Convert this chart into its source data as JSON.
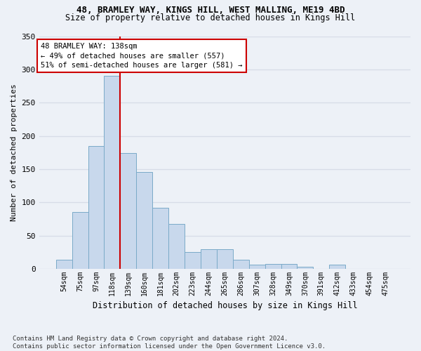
{
  "title1": "48, BRAMLEY WAY, KINGS HILL, WEST MALLING, ME19 4BD",
  "title2": "Size of property relative to detached houses in Kings Hill",
  "xlabel": "Distribution of detached houses by size in Kings Hill",
  "ylabel": "Number of detached properties",
  "footnote": "Contains HM Land Registry data © Crown copyright and database right 2024.\nContains public sector information licensed under the Open Government Licence v3.0.",
  "bar_labels": [
    "54sqm",
    "75sqm",
    "97sqm",
    "118sqm",
    "139sqm",
    "160sqm",
    "181sqm",
    "202sqm",
    "223sqm",
    "244sqm",
    "265sqm",
    "286sqm",
    "307sqm",
    "328sqm",
    "349sqm",
    "370sqm",
    "391sqm",
    "412sqm",
    "433sqm",
    "454sqm",
    "475sqm"
  ],
  "bar_values": [
    14,
    86,
    185,
    290,
    174,
    146,
    92,
    68,
    26,
    30,
    30,
    14,
    6,
    8,
    8,
    3,
    0,
    6,
    0,
    0,
    0
  ],
  "bar_color": "#c8d8ec",
  "bar_edge_color": "#7aaac8",
  "vline_color": "#cc0000",
  "vline_pos": 3.5,
  "annotation_text": "48 BRAMLEY WAY: 138sqm\n← 49% of detached houses are smaller (557)\n51% of semi-detached houses are larger (581) →",
  "annotation_box_facecolor": "white",
  "annotation_box_edgecolor": "#cc0000",
  "ylim_max": 350,
  "yticks": [
    0,
    50,
    100,
    150,
    200,
    250,
    300,
    350
  ],
  "bg_color": "#edf1f7",
  "grid_color": "#d8dde8",
  "title1_fontsize": 9,
  "title2_fontsize": 8.5,
  "ylabel_fontsize": 8,
  "xlabel_fontsize": 8.5,
  "tick_fontsize": 7,
  "footnote_fontsize": 6.5
}
